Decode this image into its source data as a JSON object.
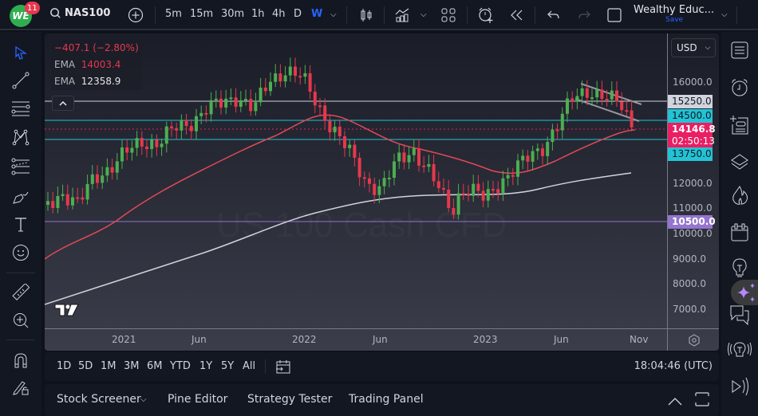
{
  "topbar": {
    "logo_text": "WE",
    "notification_count": "11",
    "symbol": "NAS100",
    "intervals": [
      "5m",
      "15m",
      "30m",
      "1h",
      "4h",
      "D",
      "W"
    ],
    "active_interval": "W",
    "layout_name": "Wealthy Educ...",
    "layout_save": "Save"
  },
  "legend": {
    "change": "−407.1 (−2.80%)",
    "ema1_label": "EMA",
    "ema1_value": "14003.4",
    "ema2_label": "EMA",
    "ema2_value": "12358.9"
  },
  "chart": {
    "watermark": "US 100 Cash CFD",
    "currency": "USD",
    "colors": {
      "up": "#4caf50",
      "down": "#e5384d",
      "ema_fast": "#e04a56",
      "ema_slow": "#d1d4dc",
      "cyan": "#22c3d5",
      "purple": "#9575cd",
      "current": "#e91e63"
    },
    "price_ticks": [
      "16000.0",
      "12000.0",
      "11000.0",
      "10000.0",
      "9000.0",
      "8000.0",
      "7000.0"
    ],
    "price_labels": {
      "level_15250": "15250.0",
      "level_14500": "14500.0",
      "current_price": "14146.8",
      "countdown": "02:50:13",
      "level_13750": "13750.0",
      "level_10500": "10500.0"
    },
    "time_ticks": [
      "2021",
      "Jun",
      "2022",
      "Jun",
      "2023",
      "Jun",
      "Nov"
    ]
  },
  "bottombar": {
    "ranges": [
      "1D",
      "5D",
      "1M",
      "3M",
      "6M",
      "YTD",
      "1Y",
      "5Y",
      "All"
    ],
    "clock": "18:04:46 (UTC)"
  },
  "panelbar": {
    "items": [
      "Stock Screener",
      "Pine Editor",
      "Strategy Tester",
      "Trading Panel"
    ]
  }
}
